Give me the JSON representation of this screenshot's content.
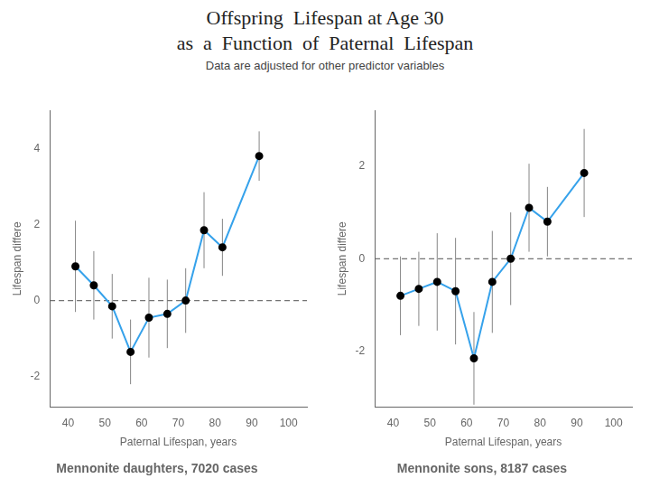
{
  "title": [
    "Offspring  Lifespan at Age 30",
    "as  a  Function  of  Paternal  Lifespan"
  ],
  "subtitle": "Data are adjusted for other predictor variables",
  "chart_data": [
    {
      "type": "line",
      "title": "Mennonite daughters, 7020 cases",
      "xlabel": "Paternal Lifespan, years",
      "ylabel": "Lifespan differe",
      "x": [
        42,
        47,
        52,
        57,
        62,
        67,
        72,
        77,
        82,
        92
      ],
      "values": [
        0.9,
        0.4,
        -0.15,
        -1.35,
        -0.45,
        -0.35,
        0.0,
        1.85,
        1.4,
        3.8
      ],
      "error_low": [
        1.2,
        0.9,
        0.85,
        0.85,
        1.05,
        0.9,
        0.85,
        1.0,
        0.75,
        0.65
      ],
      "error_high": [
        1.2,
        0.9,
        0.85,
        0.85,
        1.05,
        0.9,
        0.85,
        1.0,
        0.75,
        0.65
      ],
      "hline": 0,
      "xlim": [
        35,
        105
      ],
      "xticks": [
        40,
        50,
        60,
        70,
        80,
        90,
        100
      ],
      "ylim": [
        -2.8,
        5.0
      ],
      "yticks": [
        -2,
        0,
        2,
        4
      ],
      "marker": "circle",
      "grid": false
    },
    {
      "type": "line",
      "title": "Mennonite sons, 8187 cases",
      "xlabel": "Paternal Lifespan, years",
      "ylabel": "Lifespan differe",
      "x": [
        42,
        47,
        52,
        57,
        62,
        67,
        72,
        77,
        82,
        92
      ],
      "values": [
        -0.8,
        -0.65,
        -0.5,
        -0.7,
        -2.15,
        -0.5,
        0.0,
        1.1,
        0.8,
        1.85
      ],
      "error_low": [
        0.85,
        0.8,
        1.05,
        1.15,
        1.0,
        1.1,
        1.0,
        0.95,
        0.75,
        0.95
      ],
      "error_high": [
        0.85,
        0.8,
        1.05,
        1.15,
        1.0,
        1.1,
        1.0,
        0.95,
        0.75,
        0.95
      ],
      "hline": 0,
      "xlim": [
        35,
        105
      ],
      "xticks": [
        40,
        50,
        60,
        70,
        80,
        90,
        100
      ],
      "ylim": [
        -3.2,
        3.2
      ],
      "yticks": [
        -2,
        0,
        2
      ],
      "marker": "circle",
      "grid": false
    }
  ]
}
